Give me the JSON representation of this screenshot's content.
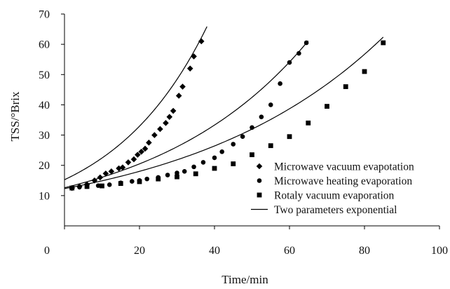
{
  "colors": {
    "ink": "#000000",
    "background": "#ffffff"
  },
  "chart_data": {
    "type": "scatter",
    "title": "",
    "xlabel": "Time/min",
    "ylabel": "TSS/°Brix",
    "xlim": [
      0,
      100
    ],
    "ylim": [
      0,
      70
    ],
    "x_ticks": [
      "0",
      "20",
      "40",
      "60",
      "80",
      "100"
    ],
    "y_ticks": [
      "10",
      "20",
      "30",
      "40",
      "50",
      "60",
      "70"
    ],
    "grid": false,
    "legend_position": "bottom-right",
    "series": [
      {
        "name": "Microwave vacuum evapotation",
        "marker": "diamond",
        "points": [
          [
            2,
            12.5
          ],
          [
            4,
            13
          ],
          [
            6,
            13.7
          ],
          [
            8,
            15
          ],
          [
            9.5,
            16
          ],
          [
            11,
            17.3
          ],
          [
            12.5,
            18
          ],
          [
            14.5,
            19
          ],
          [
            15.5,
            19.3
          ],
          [
            17,
            21
          ],
          [
            18.5,
            22
          ],
          [
            19.5,
            23.5
          ],
          [
            20.5,
            24.5
          ],
          [
            21.5,
            25.5
          ],
          [
            22.5,
            27.5
          ],
          [
            24,
            30
          ],
          [
            25.5,
            32
          ],
          [
            27,
            34
          ],
          [
            28,
            36
          ],
          [
            29,
            38
          ],
          [
            30.5,
            43
          ],
          [
            31.5,
            46
          ],
          [
            33.5,
            52
          ],
          [
            34.5,
            56
          ],
          [
            36.5,
            61
          ]
        ]
      },
      {
        "name": "Microwave heating evaporation",
        "marker": "circle",
        "points": [
          [
            2,
            12.5
          ],
          [
            4,
            12.8
          ],
          [
            6,
            13
          ],
          [
            9,
            13.3
          ],
          [
            12,
            13.6
          ],
          [
            15,
            14.2
          ],
          [
            18,
            14.7
          ],
          [
            20,
            15
          ],
          [
            22,
            15.5
          ],
          [
            25,
            16
          ],
          [
            27.5,
            16.8
          ],
          [
            30,
            17.5
          ],
          [
            32,
            18
          ],
          [
            34.5,
            19.5
          ],
          [
            37,
            21
          ],
          [
            40,
            22.5
          ],
          [
            42,
            24.5
          ],
          [
            45,
            27
          ],
          [
            47.5,
            29.5
          ],
          [
            50,
            32.5
          ],
          [
            52.5,
            36
          ],
          [
            55,
            40
          ],
          [
            57.5,
            47
          ],
          [
            60,
            54
          ],
          [
            62.5,
            57
          ],
          [
            64.5,
            60.5
          ]
        ]
      },
      {
        "name": "Rotaly vacuum evaporation",
        "marker": "square",
        "points": [
          [
            2,
            12.5
          ],
          [
            6,
            13
          ],
          [
            10,
            13.2
          ],
          [
            15,
            14
          ],
          [
            20,
            14.6
          ],
          [
            25,
            15.5
          ],
          [
            30,
            16.2
          ],
          [
            35,
            17.2
          ],
          [
            40,
            19
          ],
          [
            45,
            20.5
          ],
          [
            50,
            23.5
          ],
          [
            55,
            26.5
          ],
          [
            60,
            29.5
          ],
          [
            65,
            34
          ],
          [
            70,
            39.5
          ],
          [
            75,
            46
          ],
          [
            80,
            51
          ],
          [
            85,
            60.5
          ]
        ]
      },
      {
        "name": "Two parameters exponential",
        "marker": "line",
        "curves": [
          {
            "a": 15.25,
            "b": 0.0385,
            "x_range": [
              0,
              38
            ]
          },
          {
            "a": 12.6,
            "b": 0.0243,
            "x_range": [
              0,
              65
            ]
          },
          {
            "a": 12.3,
            "b": 0.0191,
            "x_range": [
              0,
              85
            ]
          }
        ]
      }
    ]
  }
}
